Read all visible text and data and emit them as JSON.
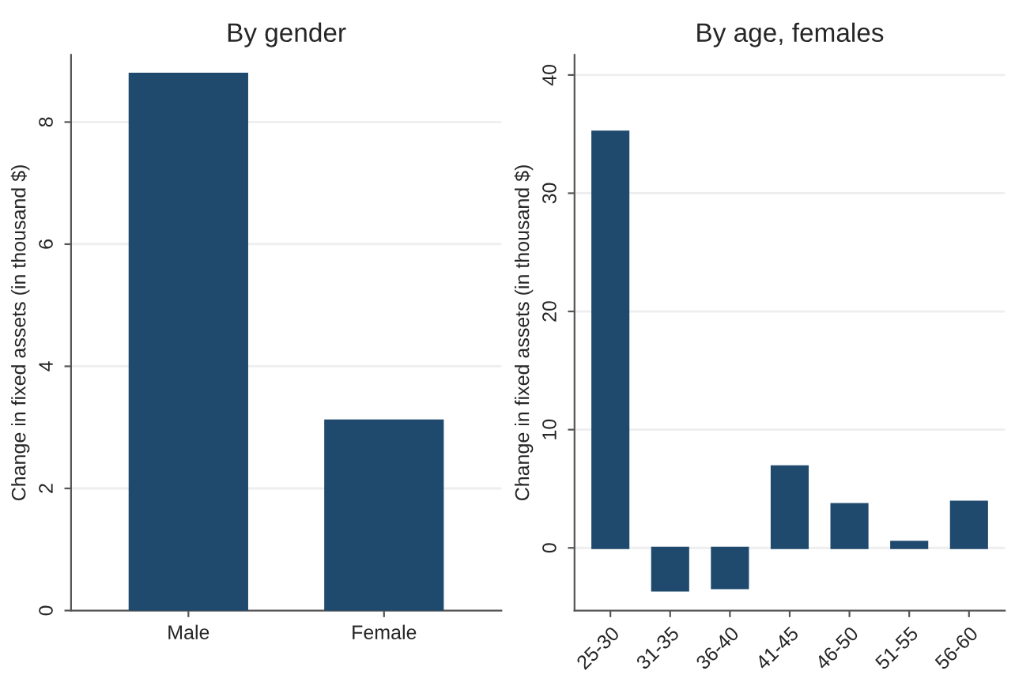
{
  "chart_data": [
    {
      "type": "bar",
      "title": "By gender",
      "ylabel": "Change in fixed assets (in thousand $)",
      "categories": [
        "Male",
        "Female"
      ],
      "values": [
        8.79,
        3.11
      ],
      "color": "#1f4a6e",
      "ylim": [
        0,
        9.1
      ],
      "yticks": [
        0,
        2,
        4,
        6,
        8
      ],
      "grid": "y"
    },
    {
      "type": "bar",
      "title": "By age, females",
      "ylabel": "Change in fixed assets (in thousand $)",
      "categories": [
        "25-30",
        "31-35",
        "36-40",
        "41-45",
        "46-50",
        "51-55",
        "56-60"
      ],
      "values": [
        35.2,
        -3.6,
        -3.4,
        6.9,
        3.7,
        0.5,
        3.9
      ],
      "color": "#1f4a6e",
      "ylim": [
        -5.3,
        41.7
      ],
      "yticks": [
        0,
        10,
        20,
        30,
        40
      ],
      "grid": "y"
    }
  ]
}
